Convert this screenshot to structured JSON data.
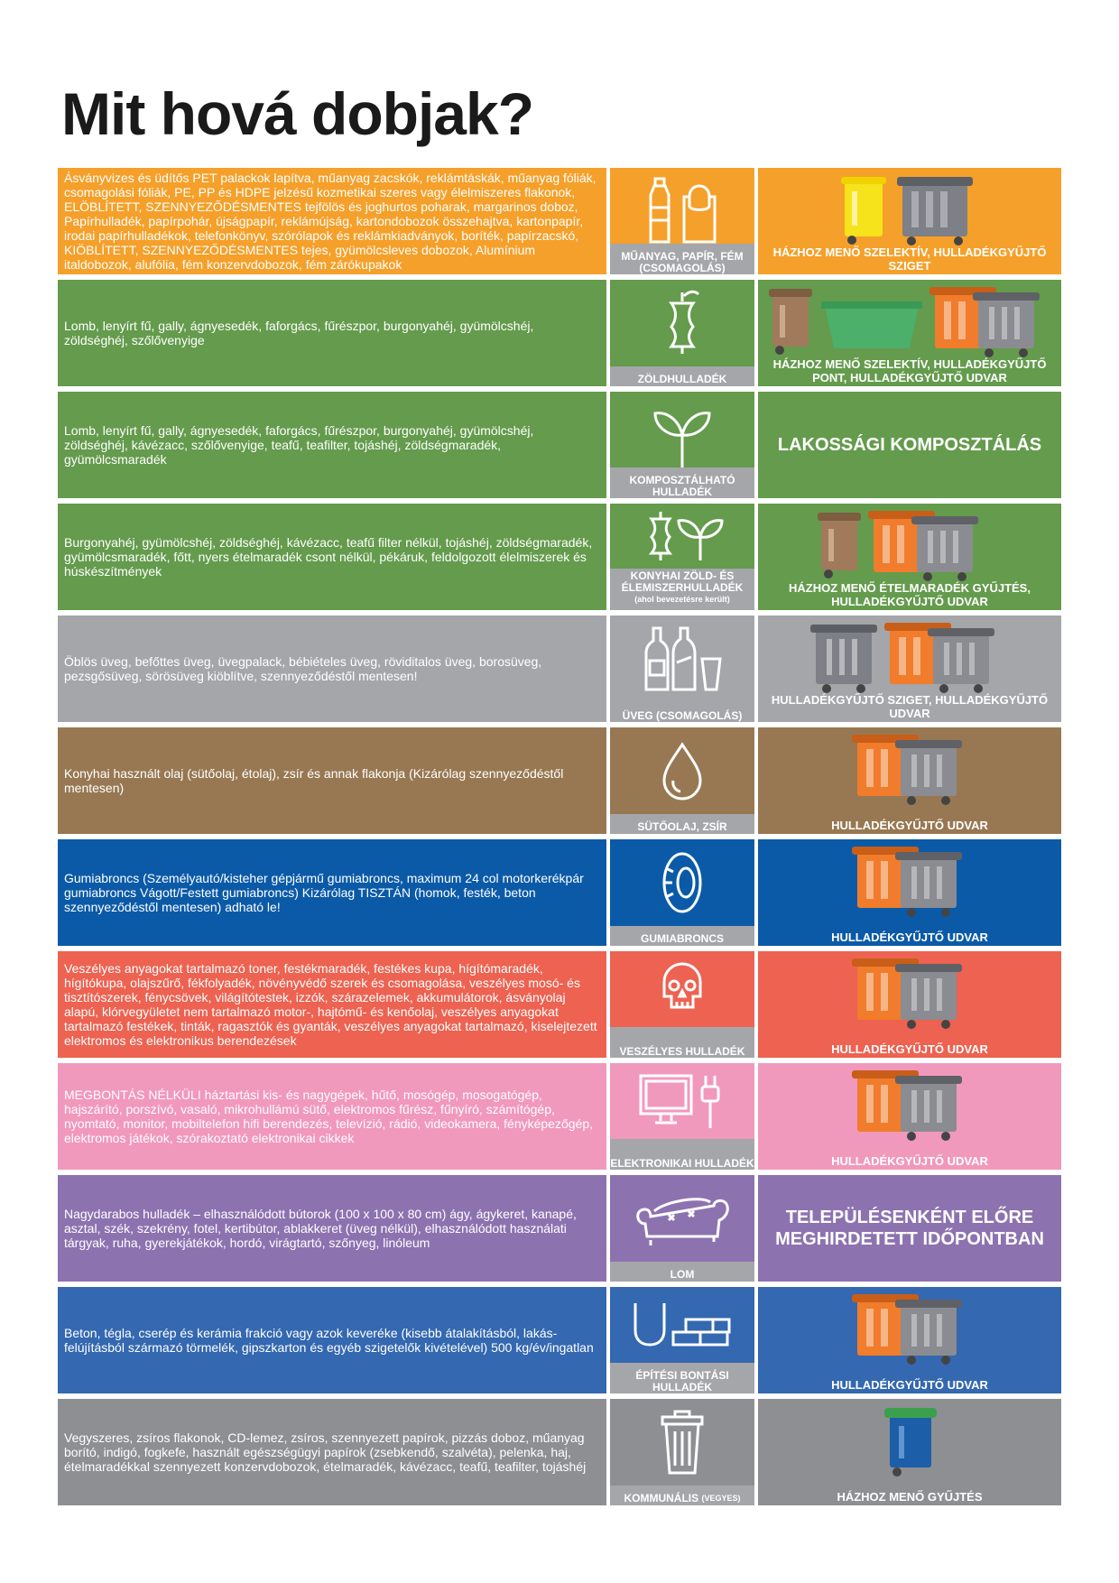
{
  "title": "Mit hová dobjak?",
  "colors": {
    "orange": "#f5a02a",
    "green": "#649b4d",
    "gray": "#a4a6a9",
    "brown": "#987852",
    "blue": "#0b5aa8",
    "red": "#ed6251",
    "pink": "#f198bd",
    "purple": "#8d72b0",
    "steel": "#3468b0",
    "darkgray": "#8e8f92"
  },
  "rows": [
    {
      "desc": "Ásványvizes és üdítős PET palackok lapítva, műanyag zacskók, reklámtáskák, műanyag fóliák, csomagolási fóliák, PE, PP és HDPE jelzésű kozmetikai szeres vagy élelmiszeres flakonok, ELÖBLÍTETT, SZENNYEZŐDÉSMENTES tejfölös és joghurtos poharak, margarinos doboz, Papírhulladék, papírpohár, újságpapír, reklámújság, kartondobozok összehajtva, kartonpapír, irodai papírhulladékok, telefonkönyv, szórólapok és reklámkiadványok, boríték, papírzacskó, KIÖBLÍTETT, SZENNYEZŐDÉSMENTES tejes, gyümölcsleves dobozok, Alumínium italdobozok, alufólia, fém konzervdobozok, fém zárókupakok",
      "icon": "bottle-bag-icon",
      "category": "MŰANYAG, PAPÍR, FÉM (CSOMAGOLÁS)",
      "destination": "HÁZHOZ MENŐ SZELEKTÍV, HULLADÉKGYŰJTŐ SZIGET"
    },
    {
      "desc": "Lomb, lenyírt fű, gally, ágnyesedék, faforgács, fűrészpor, burgonyahéj, gyümölcshéj, zöldséghéj, szőlővenyige",
      "icon": "apple-core-icon",
      "category": "ZÖLDHULLADÉK",
      "destination": "HÁZHOZ MENŐ SZELEKTÍV, HULLADÉKGYŰJTŐ PONT, HULLADÉKGYŰJTŐ UDVAR"
    },
    {
      "desc": "Lomb, lenyírt fű, gally, ágnyesedék, faforgács, fűrészpor, burgonyahéj, gyümölcshéj, zöldséghéj, kávézacc, szőlővenyige, teafű, teafilter, tojáshéj, zöldségmaradék, gyümölcsmaradék",
      "icon": "sprout-icon",
      "category": "KOMPOSZTÁLHATÓ HULLADÉK",
      "destination": "LAKOSSÁGI KOMPOSZTÁLÁS"
    },
    {
      "desc": "Burgonyahéj, gyümölcshéj, zöldséghéj, kávézacc, teafű filter nélkül, tojáshéj, zöldségmaradék, gyümölcsmaradék, főtt, nyers ételmaradék csont nélkül, pékáruk, feldolgozott élelmiszerek és húskészítmények",
      "icon": "apple-core-sprout-icon",
      "category": "KONYHAI ZÖLD- ÉS ÉLEMISZERHULLADÉK",
      "category_note": "(ahol bevezetésre került)",
      "destination": "HÁZHOZ MENŐ ÉTELMARADÉK GYŰJTÉS, HULLADÉKGYŰJTŐ UDVAR"
    },
    {
      "desc": "Öblös üveg, befőttes üveg, üvegpalack, bébiételes üveg, röviditalos üveg, borosüveg, pezsgősüveg, sörösüveg kiöblítve, szennyeződéstől mentesen!",
      "icon": "glass-bottles-icon",
      "category": "ÜVEG (CSOMAGOLÁS)",
      "destination": "HULLADÉKGYŰJTŐ SZIGET, HULLADÉKGYŰJTŐ UDVAR"
    },
    {
      "desc": "Konyhai használt olaj (sütőolaj, étolaj), zsír és annak flakonja (Kizárólag szennyeződéstől mentesen)",
      "icon": "oil-drop-icon",
      "category": "SÜTŐOLAJ, ZSÍR",
      "destination": "HULLADÉKGYŰJTŐ UDVAR"
    },
    {
      "desc": "Gumiabroncs (Személyautó/kisteher gépjármű gumiabroncs, maximum 24 col motorkerékpár gumiabroncs Vágott/Festett gumiabroncs) Kizárólag TISZTÁN (homok, festék, beton szennyeződéstől mentesen) adható le!",
      "icon": "tire-icon",
      "category": "GUMIABRONCS",
      "destination": "HULLADÉKGYŰJTŐ UDVAR"
    },
    {
      "desc": "Veszélyes anyagokat tartalmazó toner, festékmaradék, festékes kupa, hígítómaradék, hígítókupa, olajszűrő, fékfolyadék, növényvédő szerek és csomagolása, veszélyes mosó- és tisztítószerek, fénycsövek, világítótestek, izzók, szárazelemek, akkumulátorok, ásványolaj alapú, klórvegyületet nem tartalmazó motor-, hajtómű- és kenőolaj, veszélyes anyagokat tartalmazó festékek, tinták, ragasztók és gyanták, veszélyes anyagokat tartalmazó, kiselejtezett elektromos és elektronikus berendezések",
      "icon": "skull-icon",
      "category": "VESZÉLYES HULLADÉK",
      "destination": "HULLADÉKGYŰJTŐ UDVAR"
    },
    {
      "desc": "MEGBONTÁS NÉLKÜLI háztartási kis- és nagygépek, hűtő, mosógép, mosogatógép, hajszárító, porszívó, vasaló, mikrohullámú sütő, elektromos fűrész, fűnyíró, számítógép, nyomtató, monitor, mobiltelefon hifi berendezés, televízió, rádió, videokamera, fényképezőgép, elektromos játékok, szórakoztató elektronikai cikkek",
      "icon": "monitor-plug-icon",
      "category": "ELEKTRONIKAI HULLADÉK",
      "destination": "HULLADÉKGYŰJTŐ UDVAR"
    },
    {
      "desc": "Nagydarabos hulladék – elhasználódott bútorok (100 x 100 x 80 cm) ágy, ágykeret, kanapé, asztal, szék, szekrény, fotel, kertibútor, ablakkeret (üveg nélkül), elhasználódott használati tárgyak, ruha, gyerekjátékok, hordó, virágtartó, szőnyeg, linóleum",
      "icon": "sofa-icon",
      "category": "LOM",
      "destination": "TELEPÜLÉSENKÉNT ELŐRE MEGHIRDETETT IDŐPONTBAN"
    },
    {
      "desc": "Beton, tégla, cserép és kerámia frakció vagy azok keveréke (kisebb átalakításból, lakás-felújításból származó törmelék, gipszkarton és egyéb szigetelők kivételével) 500 kg/év/ingatlan",
      "icon": "bricks-icon",
      "category": "ÉPÍTÉSI BONTÁSI HULLADÉK",
      "destination": "HULLADÉKGYŰJTŐ UDVAR"
    },
    {
      "desc": "Vegyszeres, zsíros flakonok, CD-lemez, zsíros, szennyezett papírok, pizzás doboz, műanyag borító, indigó, fogkefe, használt egészségügyi papírok (zsebkendő, szalvéta), pelenka, haj, ételmaradékkal szennyezett konzervdobozok, ételmaradék, kávézacc, teafű, teafilter, tojáshéj",
      "icon": "trash-can-icon",
      "category": "KOMMUNÁLIS",
      "category_note": "(VEGYES)",
      "destination": "HÁZHOZ MENŐ GYŰJTÉS"
    }
  ]
}
